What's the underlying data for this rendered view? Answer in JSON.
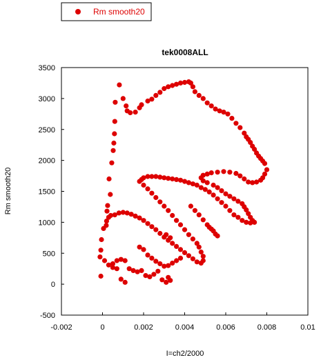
{
  "chart_data": {
    "type": "scatter",
    "title": "tek0008ALL",
    "xlabel": "I=ch2/2000",
    "ylabel": "Rm smooth20",
    "xlim": [
      -0.002,
      0.01
    ],
    "ylim": [
      -500,
      3500
    ],
    "xticks": [
      "-0.002",
      "0",
      "0.002",
      "0.004",
      "0.006",
      "0.008",
      "0.01"
    ],
    "yticks": [
      "-500",
      "0",
      "500",
      "1000",
      "1500",
      "2000",
      "2500",
      "3000",
      "3500"
    ],
    "grid": false,
    "legend": {
      "placement": "top-left, outside plot area"
    },
    "series": [
      {
        "name": "Rm smooth20",
        "color": "#dd0000",
        "points": [
          [
            0.00082,
            3220
          ],
          [
            0.00062,
            2940
          ],
          [
            0.001,
            3000
          ],
          [
            0.00115,
            2880
          ],
          [
            0.0012,
            2800
          ],
          [
            0.00135,
            2770
          ],
          [
            0.0016,
            2780
          ],
          [
            0.0018,
            2850
          ],
          [
            0.0019,
            2900
          ],
          [
            0.0022,
            2960
          ],
          [
            0.0024,
            2990
          ],
          [
            0.0026,
            3050
          ],
          [
            0.0028,
            3100
          ],
          [
            0.003,
            3160
          ],
          [
            0.0032,
            3190
          ],
          [
            0.0034,
            3210
          ],
          [
            0.0036,
            3230
          ],
          [
            0.0038,
            3250
          ],
          [
            0.004,
            3260
          ],
          [
            0.0042,
            3270
          ],
          [
            0.0043,
            3250
          ],
          [
            0.0044,
            3190
          ],
          [
            0.0045,
            3110
          ],
          [
            0.0047,
            3050
          ],
          [
            0.0049,
            3000
          ],
          [
            0.0051,
            2930
          ],
          [
            0.0053,
            2880
          ],
          [
            0.0055,
            2830
          ],
          [
            0.0057,
            2800
          ],
          [
            0.0059,
            2780
          ],
          [
            0.0061,
            2750
          ],
          [
            0.0063,
            2680
          ],
          [
            0.0065,
            2600
          ],
          [
            0.0067,
            2530
          ],
          [
            0.0069,
            2440
          ],
          [
            0.007,
            2380
          ],
          [
            0.0071,
            2340
          ],
          [
            0.0072,
            2290
          ],
          [
            0.0073,
            2230
          ],
          [
            0.0074,
            2180
          ],
          [
            0.0075,
            2120
          ],
          [
            0.0076,
            2070
          ],
          [
            0.0077,
            2030
          ],
          [
            0.0078,
            1990
          ],
          [
            0.0079,
            1950
          ],
          [
            0.008,
            1850
          ],
          [
            0.0079,
            1780
          ],
          [
            0.0078,
            1720
          ],
          [
            0.0077,
            1680
          ],
          [
            0.0075,
            1650
          ],
          [
            0.0073,
            1640
          ],
          [
            0.0071,
            1650
          ],
          [
            0.0069,
            1700
          ],
          [
            0.0067,
            1750
          ],
          [
            0.0065,
            1790
          ],
          [
            0.0062,
            1810
          ],
          [
            0.0059,
            1820
          ],
          [
            0.0056,
            1810
          ],
          [
            0.0053,
            1800
          ],
          [
            0.0051,
            1780
          ],
          [
            0.0049,
            1760
          ],
          [
            0.0048,
            1720
          ],
          [
            0.0049,
            1670
          ],
          [
            0.0051,
            1640
          ],
          [
            0.0054,
            1600
          ],
          [
            0.0056,
            1560
          ],
          [
            0.0058,
            1510
          ],
          [
            0.006,
            1460
          ],
          [
            0.0062,
            1420
          ],
          [
            0.0064,
            1380
          ],
          [
            0.0066,
            1340
          ],
          [
            0.0068,
            1300
          ],
          [
            0.0069,
            1250
          ],
          [
            0.007,
            1200
          ],
          [
            0.0071,
            1140
          ],
          [
            0.0072,
            1080
          ],
          [
            0.0073,
            1030
          ],
          [
            0.0074,
            1000
          ],
          [
            0.0072,
            990
          ],
          [
            0.007,
            1000
          ],
          [
            0.0068,
            1030
          ],
          [
            0.0066,
            1080
          ],
          [
            0.0064,
            1120
          ],
          [
            0.0062,
            1190
          ],
          [
            0.006,
            1260
          ],
          [
            0.0058,
            1320
          ],
          [
            0.0056,
            1380
          ],
          [
            0.0054,
            1440
          ],
          [
            0.0052,
            1490
          ],
          [
            0.005,
            1530
          ],
          [
            0.0048,
            1560
          ],
          [
            0.0046,
            1600
          ],
          [
            0.0044,
            1620
          ],
          [
            0.0042,
            1640
          ],
          [
            0.004,
            1660
          ],
          [
            0.0038,
            1680
          ],
          [
            0.0036,
            1690
          ],
          [
            0.0034,
            1700
          ],
          [
            0.0032,
            1710
          ],
          [
            0.003,
            1720
          ],
          [
            0.0028,
            1730
          ],
          [
            0.0026,
            1740
          ],
          [
            0.0024,
            1740
          ],
          [
            0.0022,
            1740
          ],
          [
            0.002,
            1720
          ],
          [
            0.0019,
            1690
          ],
          [
            0.0018,
            1660
          ],
          [
            0.002,
            1600
          ],
          [
            0.0022,
            1540
          ],
          [
            0.0024,
            1470
          ],
          [
            0.0026,
            1400
          ],
          [
            0.0028,
            1330
          ],
          [
            0.003,
            1260
          ],
          [
            0.0032,
            1190
          ],
          [
            0.0034,
            1110
          ],
          [
            0.0036,
            1030
          ],
          [
            0.0038,
            960
          ],
          [
            0.004,
            880
          ],
          [
            0.0042,
            800
          ],
          [
            0.0044,
            730
          ],
          [
            0.0046,
            660
          ],
          [
            0.0047,
            600
          ],
          [
            0.0048,
            520
          ],
          [
            0.0049,
            450
          ],
          [
            0.0049,
            380
          ],
          [
            0.0048,
            340
          ],
          [
            0.0046,
            360
          ],
          [
            0.0044,
            410
          ],
          [
            0.0042,
            460
          ],
          [
            0.004,
            510
          ],
          [
            0.0038,
            560
          ],
          [
            0.0036,
            610
          ],
          [
            0.0034,
            660
          ],
          [
            0.0032,
            710
          ],
          [
            0.003,
            760
          ],
          [
            0.0028,
            820
          ],
          [
            0.0026,
            880
          ],
          [
            0.0024,
            930
          ],
          [
            0.0022,
            980
          ],
          [
            0.002,
            1030
          ],
          [
            0.0018,
            1070
          ],
          [
            0.0016,
            1100
          ],
          [
            0.0014,
            1130
          ],
          [
            0.0012,
            1150
          ],
          [
            0.001,
            1160
          ],
          [
            0.0008,
            1150
          ],
          [
            0.0006,
            1120
          ],
          [
            0.0004,
            1110
          ],
          [
            0.0003,
            1080
          ],
          [
            0.0002,
            1020
          ],
          [
            0.00018,
            950
          ],
          [
            0.00022,
            1180
          ],
          [
            0.00025,
            1270
          ],
          [
            0.00038,
            1450
          ],
          [
            0.00032,
            1700
          ],
          [
            0.00045,
            1960
          ],
          [
            0.00052,
            2160
          ],
          [
            0.00055,
            2280
          ],
          [
            0.00058,
            2430
          ],
          [
            0.0006,
            2630
          ],
          [
            5e-05,
            900
          ],
          [
            -5e-05,
            720
          ],
          [
            -8e-05,
            550
          ],
          [
            -0.00012,
            440
          ],
          [
            -8e-05,
            130
          ],
          [
            0.0001,
            380
          ],
          [
            0.0003,
            310
          ],
          [
            0.0005,
            270
          ],
          [
            0.0007,
            250
          ],
          [
            0.0009,
            80
          ],
          [
            0.0011,
            30
          ],
          [
            0.0005,
            330
          ],
          [
            0.0007,
            380
          ],
          [
            0.0009,
            400
          ],
          [
            0.0011,
            380
          ],
          [
            0.0013,
            250
          ],
          [
            0.0015,
            220
          ],
          [
            0.0017,
            200
          ],
          [
            0.0019,
            220
          ],
          [
            0.0021,
            140
          ],
          [
            0.0023,
            120
          ],
          [
            0.0025,
            160
          ],
          [
            0.0027,
            210
          ],
          [
            0.0029,
            70
          ],
          [
            0.0031,
            30
          ],
          [
            0.0033,
            60
          ],
          [
            0.0032,
            110
          ],
          [
            0.0018,
            600
          ],
          [
            0.002,
            560
          ],
          [
            0.0022,
            470
          ],
          [
            0.0024,
            420
          ],
          [
            0.0026,
            370
          ],
          [
            0.0028,
            330
          ],
          [
            0.003,
            290
          ],
          [
            0.0032,
            300
          ],
          [
            0.0034,
            340
          ],
          [
            0.0036,
            380
          ],
          [
            0.0038,
            420
          ],
          [
            0.0033,
            750
          ],
          [
            0.0031,
            800
          ],
          [
            0.0043,
            1260
          ],
          [
            0.0045,
            1190
          ],
          [
            0.0047,
            1120
          ],
          [
            0.0049,
            1040
          ],
          [
            0.0051,
            960
          ],
          [
            0.0053,
            890
          ],
          [
            0.0055,
            810
          ],
          [
            0.0052,
            920
          ],
          [
            0.0054,
            860
          ],
          [
            0.0056,
            780
          ]
        ]
      }
    ]
  }
}
